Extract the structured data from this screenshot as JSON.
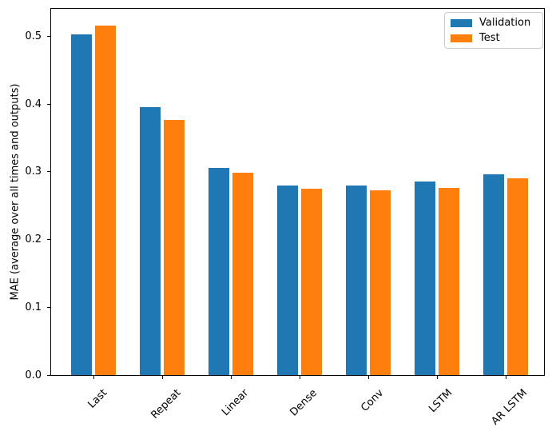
{
  "chart_data": {
    "type": "bar",
    "title": "",
    "xlabel": "",
    "ylabel": "MAE (average over all times and outputs)",
    "categories": [
      "Last",
      "Repeat",
      "Linear",
      "Dense",
      "Conv",
      "LSTM",
      "AR LSTM"
    ],
    "series": [
      {
        "name": "Validation",
        "color": "#1f77b4",
        "values": [
          0.503,
          0.396,
          0.306,
          0.28,
          0.28,
          0.286,
          0.297
        ]
      },
      {
        "name": "Test",
        "color": "#ff7f0e",
        "values": [
          0.516,
          0.377,
          0.299,
          0.276,
          0.274,
          0.277,
          0.291
        ]
      }
    ],
    "ylim": [
      0,
      0.542
    ],
    "yticks": [
      "0.0",
      "0.1",
      "0.2",
      "0.3",
      "0.4",
      "0.5"
    ],
    "xtick_rotation_deg": 45,
    "grid": false,
    "legend_position": "upper right",
    "background_color": "#ffffff",
    "spine_color": "#000000"
  }
}
